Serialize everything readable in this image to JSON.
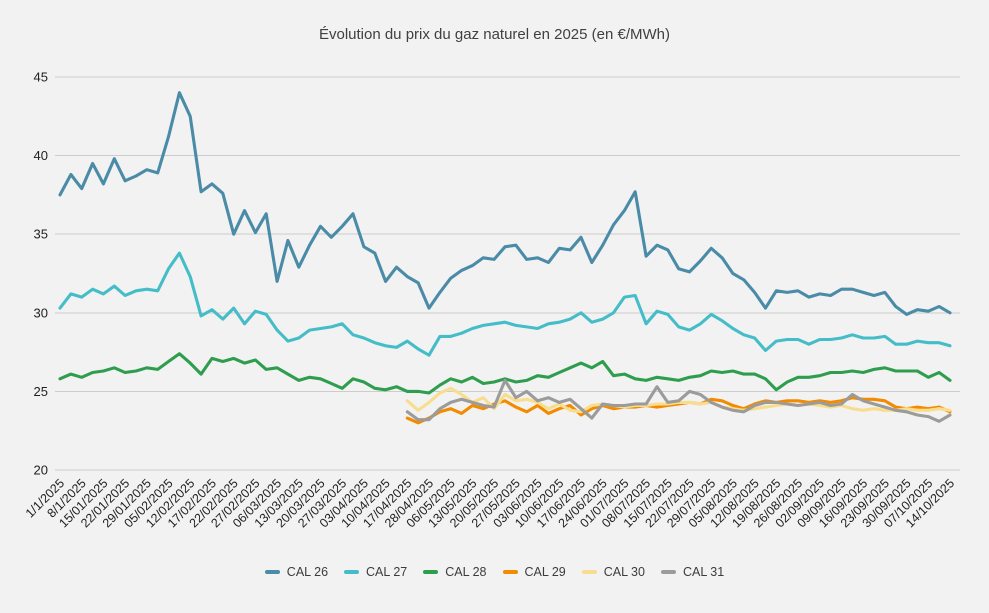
{
  "title": "Évolution du prix du gaz naturel en 2025 (en €/MWh)",
  "chart_data": {
    "type": "line",
    "title": "Évolution du prix du gaz naturel en 2025 (en €/MWh)",
    "xlabel": "",
    "ylabel": "€/MWh",
    "ylim": [
      20,
      45
    ],
    "yticks": [
      20,
      25,
      30,
      35,
      40,
      45
    ],
    "grid": "horizontal",
    "legend_position": "bottom",
    "background_color": "#f2f2f2",
    "gridline_color": "#cccccc",
    "axis_text_color": "#1f1f1f",
    "title_color": "#404040",
    "x_tick_labels": [
      "1/1/2025",
      "8/1/2025",
      "15/01/2025",
      "22/01/2025",
      "29/01/2025",
      "05/02/2025",
      "12/02/2025",
      "17/02/2025",
      "22/02/2025",
      "27/02/2025",
      "06/03/2025",
      "13/03/2025",
      "20/03/2025",
      "27/03/2025",
      "03/04/2025",
      "10/04/2025",
      "17/04/2025",
      "28/04/2025",
      "06/05/2025",
      "13/05/2025",
      "20/05/2025",
      "27/05/2025",
      "03/06/2025",
      "10/06/2025",
      "17/06/2025",
      "24/06/2025",
      "01/07/2025",
      "08/07/2025",
      "15/07/2025",
      "22/07/2025",
      "29/07/2025",
      "05/08/2025",
      "12/08/2025",
      "19/08/2025",
      "26/08/2025",
      "02/09/2025",
      "09/09/2025",
      "16/09/2025",
      "23/09/2025",
      "30/09/2025",
      "07/10/2025",
      "14/10/2025"
    ],
    "points_per_label_interval": 2,
    "series": [
      {
        "name": "CAL 26",
        "color": "#4a8ba8",
        "values": [
          37.5,
          38.8,
          37.9,
          39.5,
          38.2,
          39.8,
          38.4,
          38.7,
          39.1,
          38.9,
          41.2,
          44.0,
          42.5,
          37.7,
          38.2,
          37.6,
          35.0,
          36.5,
          35.1,
          36.3,
          32.0,
          34.6,
          32.9,
          34.3,
          35.5,
          34.8,
          35.5,
          36.3,
          34.2,
          33.8,
          32.0,
          32.9,
          32.3,
          31.9,
          30.3,
          31.3,
          32.2,
          32.7,
          33.0,
          33.5,
          33.4,
          34.2,
          34.3,
          33.4,
          33.5,
          33.2,
          34.1,
          34.0,
          34.8,
          33.2,
          34.3,
          35.6,
          36.5,
          37.7,
          33.6,
          34.3,
          34.0,
          32.8,
          32.6,
          33.3,
          34.1,
          33.5,
          32.5,
          32.1,
          31.3,
          30.3,
          31.4,
          31.3,
          31.4,
          31.0,
          31.2,
          31.1,
          31.5,
          31.5,
          31.3,
          31.1,
          31.3,
          30.4,
          29.9,
          30.2,
          30.1,
          30.4,
          30.0
        ]
      },
      {
        "name": "CAL 27",
        "color": "#45bdc8",
        "values": [
          30.3,
          31.2,
          31.0,
          31.5,
          31.2,
          31.7,
          31.1,
          31.4,
          31.5,
          31.4,
          32.8,
          33.8,
          32.3,
          29.8,
          30.2,
          29.6,
          30.3,
          29.3,
          30.1,
          29.9,
          28.9,
          28.2,
          28.4,
          28.9,
          29.0,
          29.1,
          29.3,
          28.6,
          28.4,
          28.1,
          27.9,
          27.8,
          28.2,
          27.7,
          27.3,
          28.5,
          28.5,
          28.7,
          29.0,
          29.2,
          29.3,
          29.4,
          29.2,
          29.1,
          29.0,
          29.3,
          29.4,
          29.6,
          30.0,
          29.4,
          29.6,
          30.0,
          31.0,
          31.1,
          29.3,
          30.1,
          29.9,
          29.1,
          28.9,
          29.3,
          29.9,
          29.5,
          29.0,
          28.6,
          28.4,
          27.6,
          28.2,
          28.3,
          28.3,
          28.0,
          28.3,
          28.3,
          28.4,
          28.6,
          28.4,
          28.4,
          28.5,
          28.0,
          28.0,
          28.2,
          28.1,
          28.1,
          27.9
        ]
      },
      {
        "name": "CAL 28",
        "color": "#2e9e4e",
        "values": [
          25.8,
          26.1,
          25.9,
          26.2,
          26.3,
          26.5,
          26.2,
          26.3,
          26.5,
          26.4,
          26.9,
          27.4,
          26.8,
          26.1,
          27.1,
          26.9,
          27.1,
          26.8,
          27.0,
          26.4,
          26.5,
          26.1,
          25.7,
          25.9,
          25.8,
          25.5,
          25.2,
          25.8,
          25.6,
          25.2,
          25.1,
          25.3,
          25.0,
          25.0,
          24.9,
          25.4,
          25.8,
          25.6,
          25.9,
          25.5,
          25.6,
          25.8,
          25.6,
          25.7,
          26.0,
          25.9,
          26.2,
          26.5,
          26.8,
          26.5,
          26.9,
          26.0,
          26.1,
          25.8,
          25.7,
          25.9,
          25.8,
          25.7,
          25.9,
          26.0,
          26.3,
          26.2,
          26.3,
          26.1,
          26.1,
          25.8,
          25.1,
          25.6,
          25.9,
          25.9,
          26.0,
          26.2,
          26.2,
          26.3,
          26.2,
          26.4,
          26.5,
          26.3,
          26.3,
          26.3,
          25.9,
          26.2,
          25.7
        ]
      },
      {
        "name": "CAL 29",
        "color": "#f28b00",
        "values": [
          null,
          null,
          null,
          null,
          null,
          null,
          null,
          null,
          null,
          null,
          null,
          null,
          null,
          null,
          null,
          null,
          null,
          null,
          null,
          null,
          null,
          null,
          null,
          null,
          null,
          null,
          null,
          null,
          null,
          null,
          null,
          null,
          23.3,
          23.0,
          23.3,
          23.7,
          23.9,
          23.6,
          24.1,
          23.9,
          24.2,
          24.4,
          24.0,
          23.7,
          24.1,
          23.6,
          23.9,
          24.1,
          23.5,
          23.9,
          24.1,
          23.9,
          24.0,
          24.0,
          24.1,
          24.0,
          24.1,
          24.2,
          24.3,
          24.2,
          24.5,
          24.4,
          24.1,
          23.9,
          24.2,
          24.4,
          24.3,
          24.4,
          24.4,
          24.3,
          24.4,
          24.3,
          24.4,
          24.6,
          24.5,
          24.5,
          24.4,
          24.0,
          23.9,
          24.0,
          23.9,
          24.0,
          23.7
        ]
      },
      {
        "name": "CAL 30",
        "color": "#f8dd8d",
        "values": [
          null,
          null,
          null,
          null,
          null,
          null,
          null,
          null,
          null,
          null,
          null,
          null,
          null,
          null,
          null,
          null,
          null,
          null,
          null,
          null,
          null,
          null,
          null,
          null,
          null,
          null,
          null,
          null,
          null,
          null,
          null,
          null,
          24.4,
          23.8,
          24.3,
          24.9,
          25.2,
          24.8,
          24.3,
          24.6,
          23.9,
          24.8,
          24.4,
          24.5,
          24.3,
          23.9,
          24.2,
          23.8,
          23.7,
          24.1,
          24.2,
          24.1,
          24.0,
          24.1,
          24.1,
          24.2,
          24.2,
          24.3,
          24.3,
          24.2,
          24.3,
          24.0,
          23.9,
          23.8,
          23.9,
          24.0,
          24.1,
          24.2,
          24.1,
          24.2,
          24.1,
          24.0,
          24.1,
          23.9,
          23.8,
          23.9,
          23.8,
          23.8,
          23.9,
          23.8,
          23.8,
          23.9,
          23.8
        ]
      },
      {
        "name": "CAL 31",
        "color": "#9b9b9b",
        "values": [
          null,
          null,
          null,
          null,
          null,
          null,
          null,
          null,
          null,
          null,
          null,
          null,
          null,
          null,
          null,
          null,
          null,
          null,
          null,
          null,
          null,
          null,
          null,
          null,
          null,
          null,
          null,
          null,
          null,
          null,
          null,
          null,
          23.7,
          23.2,
          23.2,
          23.9,
          24.3,
          24.5,
          24.3,
          24.1,
          24.0,
          25.7,
          24.6,
          25.0,
          24.4,
          24.6,
          24.3,
          24.5,
          23.9,
          23.3,
          24.2,
          24.1,
          24.1,
          24.2,
          24.2,
          25.3,
          24.3,
          24.4,
          25.0,
          24.8,
          24.3,
          24.0,
          23.8,
          23.7,
          24.1,
          24.3,
          24.3,
          24.2,
          24.1,
          24.2,
          24.3,
          24.1,
          24.2,
          24.8,
          24.4,
          24.2,
          24.0,
          23.8,
          23.7,
          23.5,
          23.4,
          23.1,
          23.5
        ]
      }
    ]
  }
}
